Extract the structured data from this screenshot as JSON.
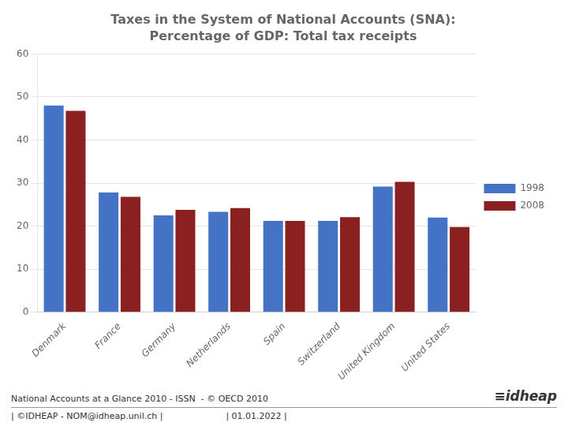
{
  "chart_data": {
    "type": "bar",
    "title": "Taxes in the System of National Accounts (SNA):",
    "subtitle": "Percentage of GDP: Total tax receipts",
    "categories": [
      "Denmark",
      "France",
      "Germany",
      "Netherlands",
      "Spain",
      "Switzerland",
      "United Kingdom",
      "United States"
    ],
    "series": [
      {
        "name": "1998",
        "color": "#4472C4",
        "values": [
          48.0,
          27.8,
          22.5,
          23.3,
          21.2,
          21.2,
          29.2,
          22.0
        ]
      },
      {
        "name": "2008",
        "color": "#8B2020",
        "values": [
          46.8,
          26.8,
          23.8,
          24.2,
          21.2,
          22.1,
          30.3,
          19.8
        ]
      }
    ],
    "ylim": [
      0,
      60
    ],
    "yticks": [
      0,
      10,
      20,
      30,
      40,
      50,
      60
    ],
    "grid": true,
    "legend": "right",
    "annotations": [
      "National Accounts at a Glance 2010 - ISSN  - © OECD 2010",
      "≡idheap",
      "| ©IDHEAP - NOM@idheap.unil.ch |",
      "| 01.01.2022 |"
    ]
  }
}
